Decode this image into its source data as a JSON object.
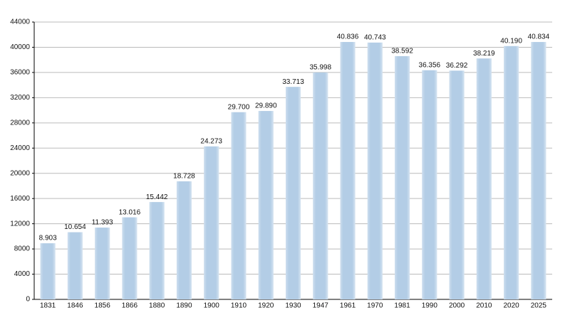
{
  "chart_data": {
    "type": "bar",
    "categories": [
      "1831",
      "1846",
      "1856",
      "1866",
      "1880",
      "1890",
      "1900",
      "1910",
      "1920",
      "1930",
      "1947",
      "1961",
      "1970",
      "1981",
      "1990",
      "2000",
      "2010",
      "2020",
      "2025"
    ],
    "values": [
      8903,
      10654,
      11393,
      13016,
      15442,
      18728,
      24273,
      29700,
      29890,
      33713,
      35998,
      40836,
      40743,
      38592,
      36356,
      36292,
      38219,
      40190,
      40834
    ],
    "value_labels": [
      "8.903",
      "10.654",
      "11.393",
      "13.016",
      "15.442",
      "18.728",
      "24.273",
      "29.700",
      "29.890",
      "33.713",
      "35.998",
      "40.836",
      "40.743",
      "38.592",
      "36.356",
      "36.292",
      "38.219",
      "40.190",
      "40.834"
    ],
    "color": "#b3cde6",
    "ylim": [
      0,
      44000
    ],
    "yticks": [
      0,
      4000,
      8000,
      12000,
      16000,
      20000,
      24000,
      28000,
      32000,
      36000,
      40000,
      44000
    ],
    "grid": true
  }
}
